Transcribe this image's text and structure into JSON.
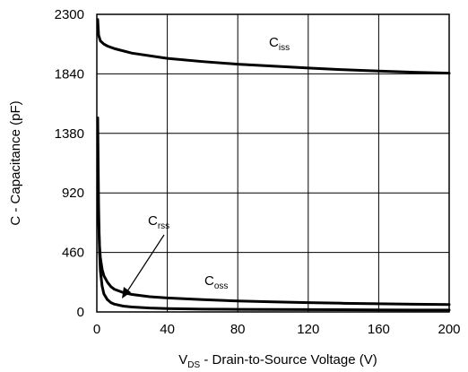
{
  "chart_data": {
    "type": "line",
    "xlabel": {
      "main": "V",
      "sub": "DS",
      "rest": " - Drain-to-Source Voltage (V)"
    },
    "ylabel": "C - Capacitance (pF)",
    "xlim": [
      0,
      200
    ],
    "ylim": [
      0,
      2300
    ],
    "xticks": [
      0,
      40,
      80,
      120,
      160,
      200
    ],
    "yticks": [
      0,
      460,
      920,
      1380,
      1840,
      2300
    ],
    "xtick_labels": [
      "0",
      "40",
      "80",
      "120",
      "160",
      "200"
    ],
    "ytick_labels": [
      "0",
      "460",
      "920",
      "1380",
      "1840",
      "2300"
    ],
    "grid": true,
    "series": [
      {
        "name": "Ciss",
        "label_main": "C",
        "label_sub": "iss",
        "x": [
          0.5,
          1,
          2,
          4,
          6,
          10,
          20,
          40,
          60,
          80,
          100,
          120,
          140,
          160,
          180,
          200
        ],
        "values": [
          2260,
          2140,
          2095,
          2070,
          2055,
          2035,
          2000,
          1960,
          1935,
          1915,
          1900,
          1885,
          1872,
          1862,
          1852,
          1845
        ]
      },
      {
        "name": "Coss",
        "label_main": "C",
        "label_sub": "oss",
        "x": [
          0.5,
          1,
          1.5,
          2,
          3,
          4,
          6,
          8,
          10,
          15,
          20,
          30,
          40,
          60,
          80,
          100,
          120,
          140,
          160,
          180,
          200
        ],
        "values": [
          1000,
          700,
          520,
          420,
          330,
          280,
          230,
          195,
          175,
          150,
          135,
          118,
          108,
          95,
          85,
          78,
          72,
          67,
          63,
          60,
          57
        ]
      },
      {
        "name": "Crss",
        "label_main": "C",
        "label_sub": "rss",
        "x": [
          0.5,
          1,
          1.5,
          2,
          3,
          4,
          6,
          8,
          10,
          15,
          20,
          30,
          40,
          60,
          80,
          100,
          120,
          140,
          160,
          180,
          200
        ],
        "values": [
          1500,
          820,
          480,
          320,
          200,
          140,
          95,
          72,
          60,
          45,
          38,
          30,
          26,
          22,
          20,
          19,
          18,
          17,
          16,
          15,
          15
        ]
      }
    ]
  }
}
